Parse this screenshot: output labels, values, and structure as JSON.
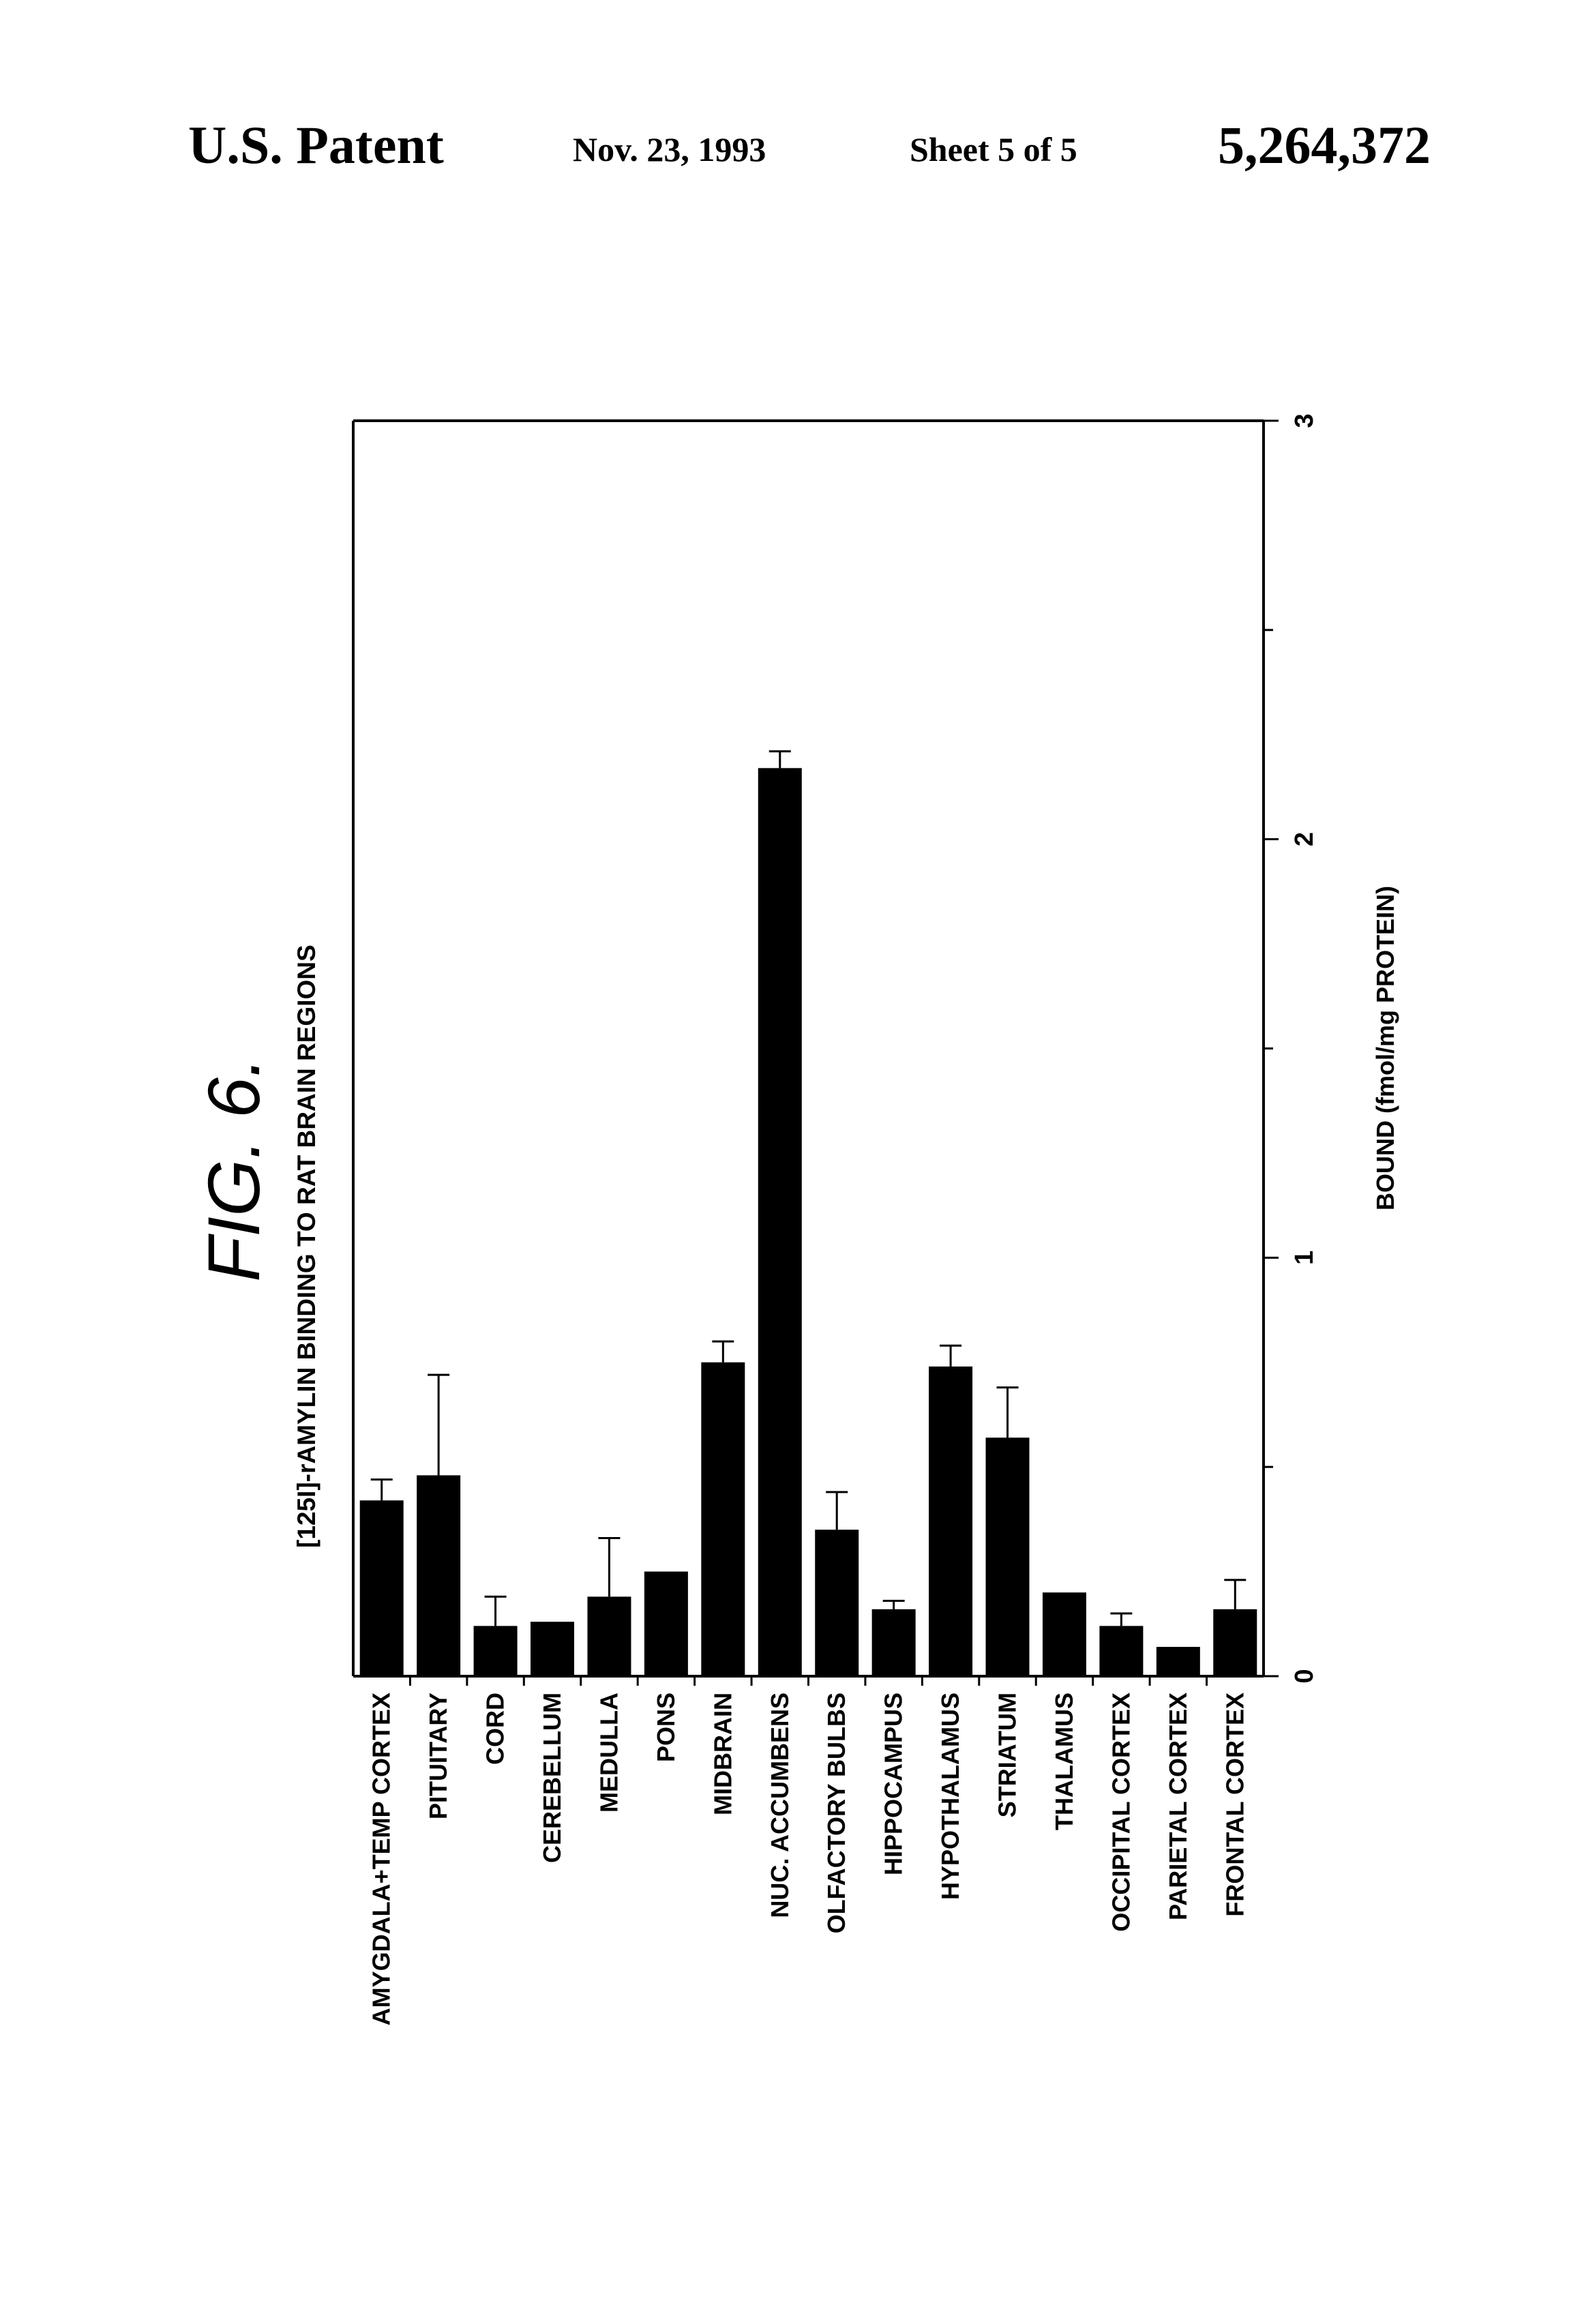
{
  "header": {
    "left": "U.S. Patent",
    "date": "Nov. 23, 1993",
    "sheet": "Sheet 5 of 5",
    "patent_number": "5,264,372"
  },
  "figure": {
    "label": "FIG. 6.",
    "title": "[125I]-rAMYLIN BINDING TO RAT BRAIN REGIONS"
  },
  "chart_data": {
    "type": "bar",
    "orientation": "printed rotated 90 degrees",
    "title": "[125I]-rAMYLIN BINDING TO RAT BRAIN REGIONS",
    "xlabel": "",
    "ylabel": "BOUND (fmol/mg PROTEIN)",
    "ylim": [
      0,
      3
    ],
    "ticks": [
      "0",
      "1",
      "2",
      "3"
    ],
    "grid": false,
    "categories": [
      "AMYGDALA+TEMP CORTEX",
      "PITUITARY",
      "CORD",
      "CEREBELLUM",
      "MEDULLA",
      "PONS",
      "MIDBRAIN",
      "NUC. ACCUMBENS",
      "OLFACTORY BULBS",
      "HIPPOCAMPUS",
      "HYPOTHALAMUS",
      "STRIATUM",
      "THALAMUS",
      "OCCIPITAL CORTEX",
      "PARIETAL CORTEX",
      "FRONTAL CORTEX"
    ],
    "values": [
      0.42,
      0.48,
      0.12,
      0.13,
      0.19,
      0.25,
      0.75,
      2.17,
      0.35,
      0.16,
      0.74,
      0.57,
      0.2,
      0.12,
      0.07,
      0.16
    ],
    "errors": [
      0.05,
      0.24,
      0.07,
      0.0,
      0.14,
      0.0,
      0.05,
      0.04,
      0.09,
      0.02,
      0.05,
      0.12,
      0.0,
      0.03,
      0.0,
      0.07
    ]
  }
}
